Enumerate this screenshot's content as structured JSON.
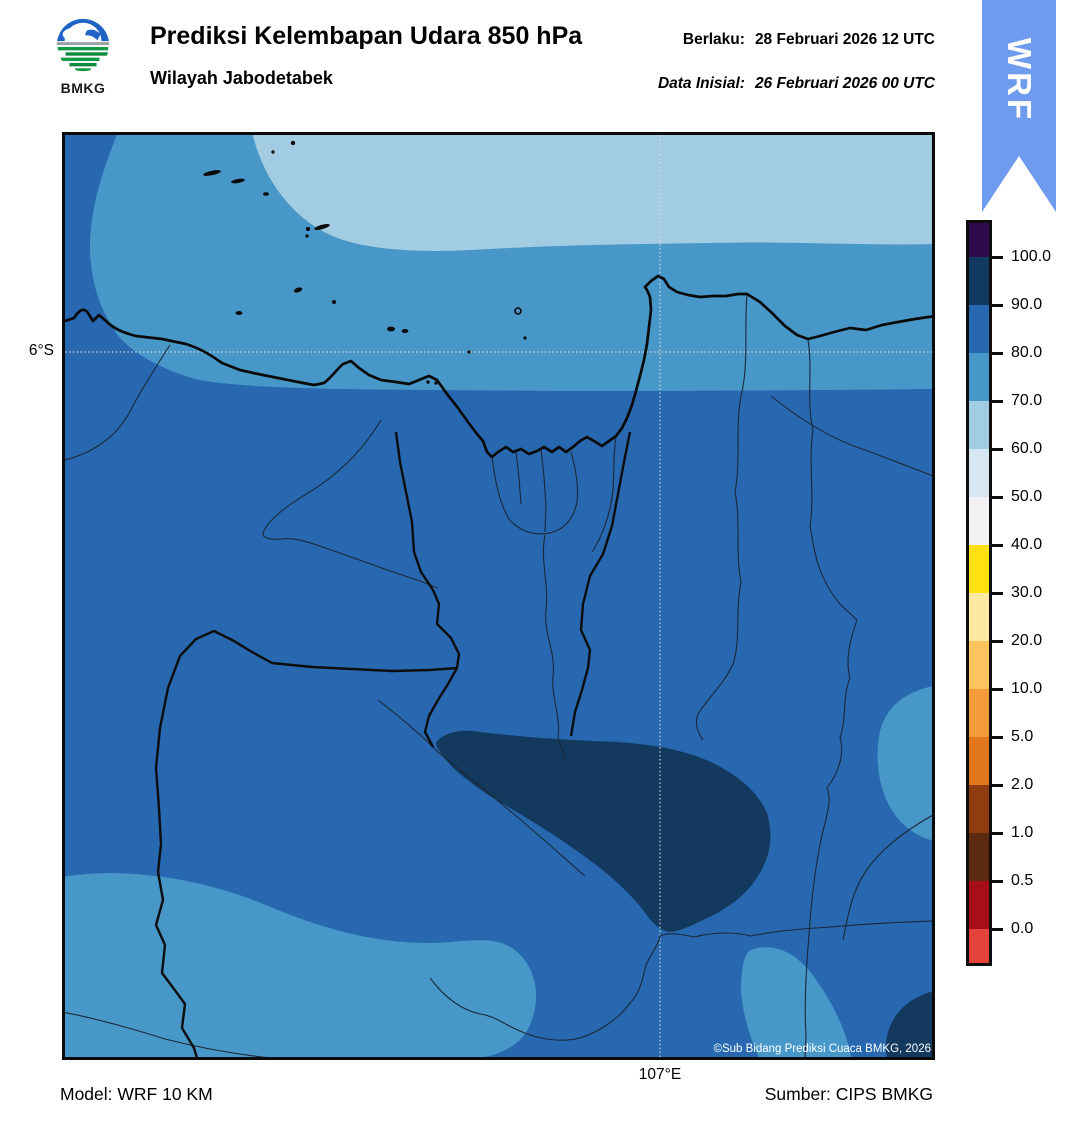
{
  "header": {
    "logo_caption": "BMKG",
    "title": "Prediksi Kelembapan Udara 850 hPa",
    "subtitle": "Wilayah Jabodetabek",
    "valid_label": "Berlaku:",
    "valid_value": "28 Februari 2026 12 UTC",
    "init_label": "Data Inisial:",
    "init_value": "26 Februari 2026 00 UTC",
    "ribbon_label": "WRF",
    "ribbon_color": "#6F9BEE"
  },
  "map": {
    "lat_tick": "6°S",
    "lon_tick": "107°E",
    "copyright": "©Sub Bidang Prediksi Cuaca BMKG, 2026",
    "colors": {
      "rh_90_100": "#14395E",
      "rh_80_90": "#2768B0",
      "rh_70_80": "#4897C9",
      "rh_60_70": "#A2CCE2",
      "coastline": "#0a0a0a",
      "boundary": "#1b2838",
      "gridline": "#dfe3e8"
    }
  },
  "colorbar": {
    "tick_labels": [
      "100.0",
      "90.0",
      "80.0",
      "70.0",
      "60.0",
      "50.0",
      "40.0",
      "30.0",
      "20.0",
      "10.0",
      "5.0",
      "2.0",
      "1.0",
      "0.5",
      "0.0"
    ],
    "segment_colors": [
      "#2E0B4D",
      "#12395F",
      "#2768B0",
      "#4897C9",
      "#A2CCE2",
      "#D6E6F3",
      "#F3F1F4",
      "#FFE011",
      "#FCE9A2",
      "#FBC45F",
      "#F49C3C",
      "#E0761E",
      "#8F3D10",
      "#5B2A10",
      "#A60F1A",
      "#E6423C"
    ]
  },
  "footer": {
    "model_label": "Model: WRF 10 KM",
    "source_label": "Sumber: CIPS BMKG"
  }
}
